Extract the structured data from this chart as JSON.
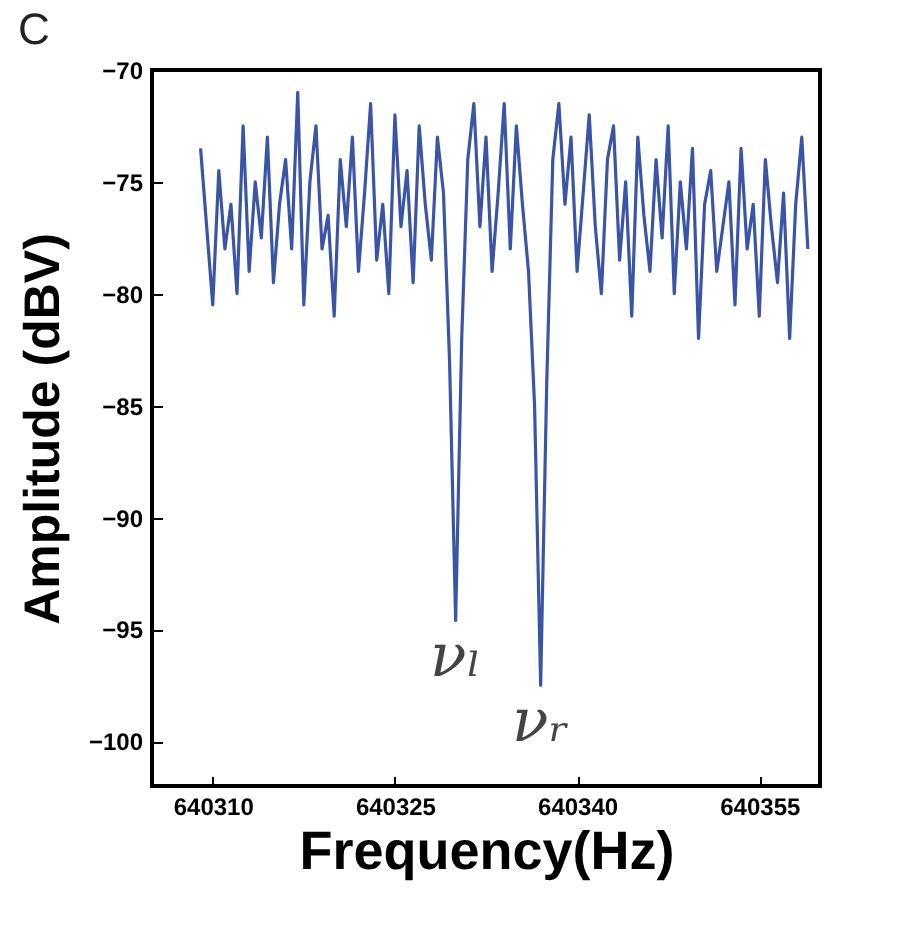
{
  "chart_data": {
    "type": "line",
    "title": "C",
    "xlabel": "Frequency(Hz)",
    "ylabel": "Amplitude (dBV)",
    "xlim": [
      640305,
      640360
    ],
    "xticks": [
      640310,
      640325,
      640340,
      640355
    ],
    "ylim": [
      -102,
      -70
    ],
    "yticks": [
      -70,
      -75,
      -80,
      -85,
      -90,
      -95,
      -100
    ],
    "grid": false,
    "marker": "none",
    "line_style": "solid",
    "annotations": [
      {
        "text": "νₗ",
        "x": 640330,
        "y": -94.6
      },
      {
        "text": "νᵣ",
        "x": 640337,
        "y": -97.5
      }
    ],
    "x": [
      640309,
      640309.5,
      640310,
      640310.5,
      640311,
      640311.5,
      640312,
      640312.5,
      640313,
      640313.5,
      640314,
      640314.5,
      640315,
      640315.5,
      640316,
      640316.5,
      640317,
      640317.5,
      640318,
      640318.5,
      640319,
      640319.5,
      640320,
      640320.5,
      640321,
      640321.5,
      640322,
      640322.5,
      640323,
      640323.5,
      640324,
      640324.5,
      640325,
      640325.5,
      640326,
      640326.5,
      640327,
      640327.5,
      640328,
      640328.5,
      640329,
      640329.5,
      640330,
      640330.5,
      640331,
      640331.5,
      640332,
      640332.5,
      640333,
      640333.5,
      640334,
      640334.5,
      640335,
      640335.5,
      640336,
      640336.5,
      640337,
      640337.5,
      640338,
      640338.5,
      640339,
      640339.5,
      640340,
      640340.5,
      640341,
      640341.5,
      640342,
      640342.5,
      640343,
      640343.5,
      640344,
      640344.5,
      640345,
      640345.5,
      640346,
      640346.5,
      640347,
      640347.5,
      640348,
      640348.5,
      640349,
      640349.5,
      640350,
      640350.5,
      640351,
      640351.5,
      640352,
      640352.5,
      640353,
      640353.5,
      640354,
      640354.5,
      640355,
      640355.5,
      640356,
      640356.5,
      640357,
      640357.5,
      640358,
      640358.5,
      640359
    ],
    "series": [
      {
        "color": "#3a55a5",
        "values": [
          -73.5,
          -77,
          -80.5,
          -74.5,
          -78,
          -76,
          -80,
          -72.5,
          -79,
          -75,
          -77.5,
          -73,
          -79.5,
          -76,
          -74,
          -78,
          -71,
          -80.5,
          -75,
          -72.5,
          -78,
          -76.5,
          -81,
          -74,
          -77,
          -73,
          -79,
          -75.5,
          -71.5,
          -78.5,
          -76,
          -80,
          -72,
          -77,
          -74.5,
          -79.5,
          -72.5,
          -76,
          -78.5,
          -73,
          -75.5,
          -83,
          -94.6,
          -82,
          -74,
          -71.5,
          -77,
          -73,
          -79,
          -75.5,
          -71.5,
          -78,
          -72.5,
          -76,
          -79,
          -85,
          -97.5,
          -84,
          -74,
          -71.5,
          -76,
          -73,
          -79,
          -75.5,
          -72,
          -77,
          -80,
          -74,
          -72.5,
          -78.5,
          -75,
          -81,
          -73,
          -76.5,
          -79,
          -74,
          -77.5,
          -72.5,
          -80,
          -75,
          -78,
          -73.5,
          -82,
          -76,
          -74.5,
          -79,
          -77,
          -75,
          -80.5,
          -73.5,
          -78,
          -76,
          -81,
          -74,
          -77,
          -79.5,
          -75.5,
          -82,
          -76,
          -73,
          -78
        ]
      }
    ]
  }
}
